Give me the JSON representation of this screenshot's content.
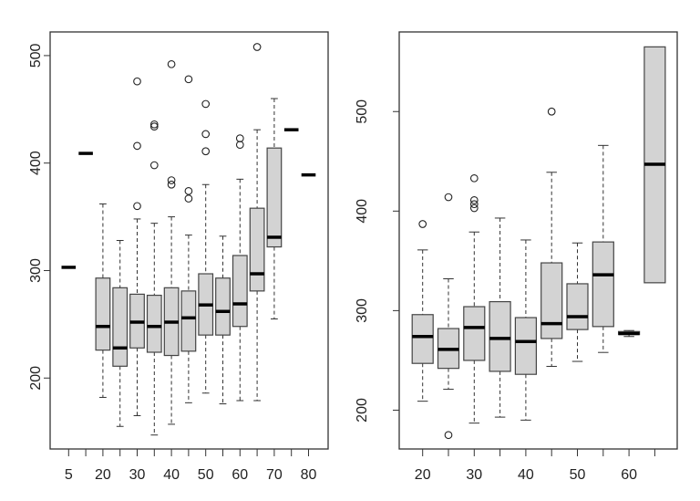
{
  "chart_data": [
    {
      "type": "boxplot",
      "title": "",
      "xlabel": "",
      "ylabel": "",
      "ylim": [
        134,
        522
      ],
      "yticks": [
        200,
        300,
        400,
        500
      ],
      "grid": false,
      "box_fill": "#d3d3d3",
      "categories": [
        "5",
        "",
        "20",
        "",
        "30",
        "",
        "40",
        "",
        "50",
        "",
        "60",
        "",
        "70",
        "",
        "80"
      ],
      "boxes": [
        {
          "lo": 303,
          "q1": 303,
          "med": 303,
          "q3": 303,
          "hi": 303,
          "outliers": []
        },
        {
          "lo": 409,
          "q1": 409,
          "med": 409,
          "q3": 409,
          "hi": 409,
          "outliers": []
        },
        {
          "lo": 182,
          "q1": 226,
          "med": 248,
          "q3": 293,
          "hi": 362,
          "outliers": []
        },
        {
          "lo": 155,
          "q1": 211,
          "med": 228,
          "q3": 284,
          "hi": 328,
          "outliers": []
        },
        {
          "lo": 165,
          "q1": 228,
          "med": 252,
          "q3": 278,
          "hi": 348,
          "outliers": [
            476,
            416,
            360
          ]
        },
        {
          "lo": 147,
          "q1": 224,
          "med": 248,
          "q3": 277,
          "hi": 344,
          "outliers": [
            436,
            434,
            398
          ]
        },
        {
          "lo": 157,
          "q1": 221,
          "med": 252,
          "q3": 284,
          "hi": 350,
          "outliers": [
            492,
            384,
            380
          ]
        },
        {
          "lo": 177,
          "q1": 225,
          "med": 256,
          "q3": 281,
          "hi": 333,
          "outliers": [
            478,
            374,
            367
          ]
        },
        {
          "lo": 186,
          "q1": 240,
          "med": 268,
          "q3": 297,
          "hi": 380,
          "outliers": [
            455,
            427,
            411
          ]
        },
        {
          "lo": 176,
          "q1": 240,
          "med": 262,
          "q3": 293,
          "hi": 332,
          "outliers": []
        },
        {
          "lo": 179,
          "q1": 248,
          "med": 269,
          "q3": 314,
          "hi": 385,
          "outliers": [
            423,
            417
          ]
        },
        {
          "lo": 179,
          "q1": 281,
          "med": 297,
          "q3": 358,
          "hi": 431,
          "outliers": [
            508
          ]
        },
        {
          "lo": 255,
          "q1": 322,
          "med": 331,
          "q3": 414,
          "hi": 460,
          "outliers": []
        },
        {
          "lo": 431,
          "q1": 431,
          "med": 431,
          "q3": 431,
          "hi": 431,
          "outliers": []
        },
        {
          "lo": 389,
          "q1": 389,
          "med": 389,
          "q3": 389,
          "hi": 389,
          "outliers": []
        }
      ]
    },
    {
      "type": "boxplot",
      "title": "",
      "xlabel": "",
      "ylabel": "",
      "ylim": [
        161,
        580
      ],
      "yticks": [
        200,
        300,
        400,
        500
      ],
      "grid": false,
      "box_fill": "#d3d3d3",
      "categories": [
        "20",
        "",
        "30",
        "",
        "40",
        "",
        "50",
        "",
        "60",
        ""
      ],
      "boxes": [
        {
          "lo": 209,
          "q1": 247,
          "med": 274,
          "q3": 296,
          "hi": 361,
          "outliers": [
            387
          ]
        },
        {
          "lo": 221,
          "q1": 242,
          "med": 261,
          "q3": 282,
          "hi": 332,
          "outliers": [
            414,
            175
          ]
        },
        {
          "lo": 187,
          "q1": 250,
          "med": 283,
          "q3": 304,
          "hi": 379,
          "outliers": [
            433,
            411,
            407,
            403
          ]
        },
        {
          "lo": 193,
          "q1": 239,
          "med": 272,
          "q3": 309,
          "hi": 393,
          "outliers": []
        },
        {
          "lo": 190,
          "q1": 236,
          "med": 269,
          "q3": 293,
          "hi": 371,
          "outliers": []
        },
        {
          "lo": 244,
          "q1": 272,
          "med": 287,
          "q3": 348,
          "hi": 439,
          "outliers": [
            500
          ]
        },
        {
          "lo": 249,
          "q1": 281,
          "med": 294,
          "q3": 327,
          "hi": 368,
          "outliers": []
        },
        {
          "lo": 258,
          "q1": 284,
          "med": 336,
          "q3": 369,
          "hi": 466,
          "outliers": []
        },
        {
          "lo": 274,
          "q1": 276,
          "med": 277,
          "q3": 279,
          "hi": 280,
          "outliers": []
        },
        {
          "lo": 328,
          "q1": 328,
          "med": 447,
          "q3": 565,
          "hi": 565,
          "outliers": []
        }
      ]
    }
  ]
}
